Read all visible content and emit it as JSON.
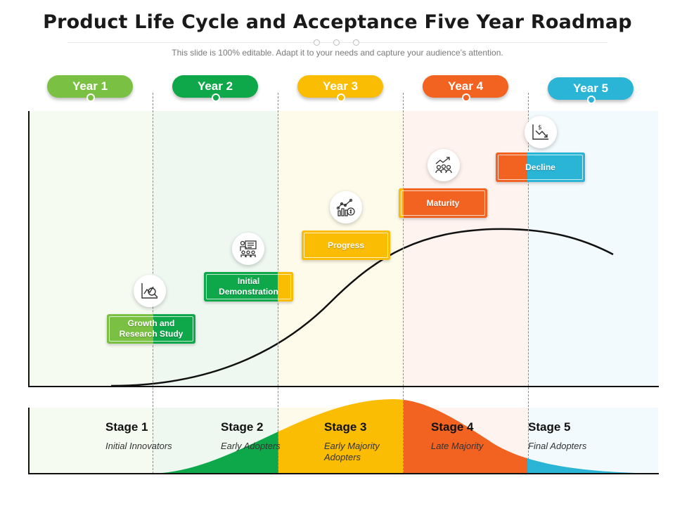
{
  "title": "Product Life Cycle and Acceptance Five Year Roadmap",
  "subtitle": "This slide is 100% editable. Adapt it to your needs and capture your audience’s attention.",
  "colors": {
    "year1": "#7ac143",
    "year2": "#0ea84b",
    "year3": "#fbbc04",
    "year4": "#f26322",
    "year5": "#2ab4d6"
  },
  "years": [
    {
      "label": "Year 1",
      "color": "#7ac143"
    },
    {
      "label": "Year 2",
      "color": "#0ea84b"
    },
    {
      "label": "Year 3",
      "color": "#fbbc04"
    },
    {
      "label": "Year 4",
      "color": "#f26322"
    },
    {
      "label": "Year 5",
      "color": "#2ab4d6"
    }
  ],
  "phases": [
    {
      "label": "Growth and Research Study",
      "icon": "magnifier-chart-icon"
    },
    {
      "label": "Initial Demonstration",
      "icon": "presentation-board-icon"
    },
    {
      "label": "Progress",
      "icon": "growth-gear-icon"
    },
    {
      "label": "Maturity",
      "icon": "team-trend-icon"
    },
    {
      "label": "Decline",
      "icon": "dollar-decline-icon"
    }
  ],
  "stages": [
    {
      "title": "Stage 1",
      "desc": "Initial Innovators"
    },
    {
      "title": "Stage 2",
      "desc": "Early Adopters"
    },
    {
      "title": "Stage 3",
      "desc": "Early Majority Adopters"
    },
    {
      "title": "Stage 4",
      "desc": "Late Majority"
    },
    {
      "title": "Stage 5",
      "desc": "Final Adopters"
    }
  ]
}
